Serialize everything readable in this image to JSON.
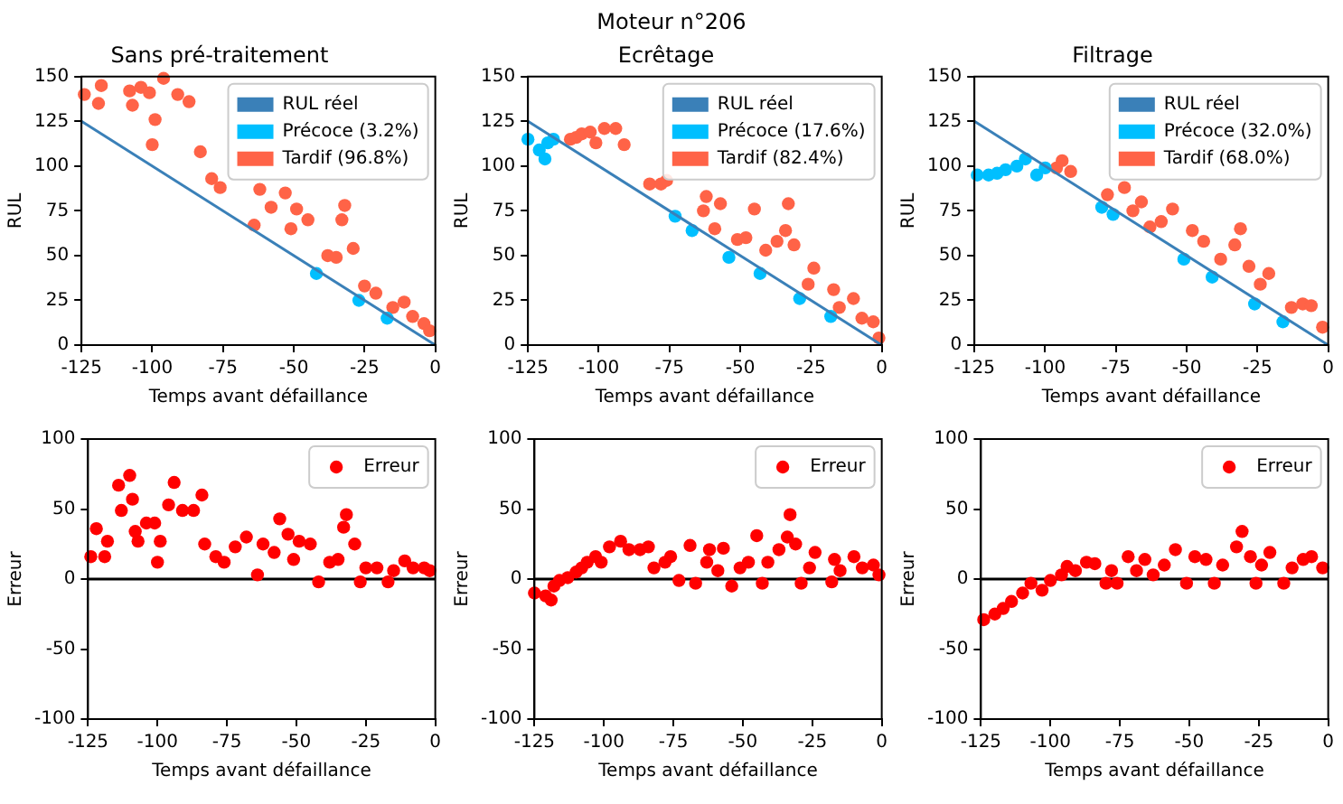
{
  "chart_data": [
    {
      "type": "scatter",
      "annotations": [
        "Moteur n°206"
      ],
      "title": "Sans pré-traitement",
      "xlabel": "Temps avant défaillance",
      "ylabel": "RUL",
      "xlim": [
        -125,
        0
      ],
      "xticks": [
        -125,
        -100,
        -75,
        -50,
        -25,
        0
      ],
      "ylim": [
        0,
        150
      ],
      "yticks": [
        0,
        25,
        50,
        75,
        100,
        125,
        150
      ],
      "legend": "top right",
      "marker": "circle",
      "series": [
        {
          "name": "RUL réel",
          "type": "line",
          "marker": "none",
          "color": "#3a80b8",
          "x": [
            -125,
            0
          ],
          "values": [
            125,
            0
          ]
        },
        {
          "name": "Précoce (3.2%)",
          "color": "#00bfff",
          "x": [
            -42,
            -27,
            -17
          ],
          "values": [
            40,
            25,
            15
          ]
        },
        {
          "name": "Tardif (96.8%)",
          "color": "#ff6347",
          "x": [
            -124,
            -119,
            -118,
            -108,
            -107,
            -104,
            -101,
            -100,
            -99,
            -96,
            -91,
            -87,
            -83,
            -79,
            -76,
            -64,
            -62,
            -58,
            -53,
            -51,
            -49,
            -45,
            -38,
            -35,
            -33,
            -32,
            -29,
            -25,
            -21,
            -15,
            -11,
            -8,
            -4,
            -2
          ],
          "values": [
            140,
            135,
            145,
            142,
            134,
            144,
            141,
            112,
            126,
            149,
            140,
            136,
            108,
            93,
            88,
            67,
            87,
            77,
            85,
            65,
            76,
            70,
            50,
            49,
            70,
            78,
            54,
            33,
            29,
            21,
            24,
            16,
            12,
            8
          ]
        }
      ]
    },
    {
      "type": "scatter",
      "title": "Ecrêtage",
      "xlabel": "Temps avant défaillance",
      "ylabel": "RUL",
      "xlim": [
        -125,
        0
      ],
      "xticks": [
        -125,
        -100,
        -75,
        -50,
        -25,
        0
      ],
      "ylim": [
        0,
        150
      ],
      "yticks": [
        0,
        25,
        50,
        75,
        100,
        125,
        150
      ],
      "legend": "top right",
      "marker": "circle",
      "series": [
        {
          "name": "RUL réel",
          "type": "line",
          "marker": "none",
          "color": "#3a80b8",
          "x": [
            -125,
            0
          ],
          "values": [
            125,
            0
          ]
        },
        {
          "name": "Précoce (17.6%)",
          "color": "#00bfff",
          "x": [
            -125,
            -121,
            -119,
            -118,
            -116,
            -73,
            -67,
            -54,
            -43,
            -29,
            -18
          ],
          "values": [
            115,
            109,
            104,
            113,
            115,
            72,
            64,
            49,
            40,
            26,
            16
          ]
        },
        {
          "name": "Tardif (82.4%)",
          "color": "#ff6347",
          "x": [
            -110,
            -108,
            -106,
            -103,
            -101,
            -98,
            -94,
            -91,
            -82,
            -78,
            -76,
            -63,
            -62,
            -59,
            -57,
            -51,
            -48,
            -45,
            -41,
            -37,
            -34,
            -33,
            -31,
            -26,
            -24,
            -17,
            -15,
            -10,
            -7,
            -3,
            -1
          ],
          "values": [
            115,
            116,
            118,
            119,
            113,
            121,
            121,
            112,
            90,
            90,
            92,
            75,
            83,
            65,
            79,
            59,
            60,
            76,
            53,
            58,
            64,
            79,
            56,
            34,
            43,
            31,
            21,
            26,
            15,
            13,
            4
          ]
        }
      ]
    },
    {
      "type": "scatter",
      "title": "Filtrage",
      "xlabel": "Temps avant défaillance",
      "ylabel": "RUL",
      "xlim": [
        -125,
        0
      ],
      "xticks": [
        -125,
        -100,
        -75,
        -50,
        -25,
        0
      ],
      "ylim": [
        0,
        150
      ],
      "yticks": [
        0,
        25,
        50,
        75,
        100,
        125,
        150
      ],
      "legend": "top right",
      "marker": "circle",
      "series": [
        {
          "name": "RUL réel",
          "type": "line",
          "marker": "none",
          "color": "#3a80b8",
          "x": [
            -125,
            0
          ],
          "values": [
            125,
            0
          ]
        },
        {
          "name": "Précoce (32.0%)",
          "color": "#00bfff",
          "x": [
            -124,
            -120,
            -117,
            -114,
            -110,
            -107,
            -103,
            -100,
            -80,
            -76,
            -51,
            -41,
            -26,
            -16
          ],
          "values": [
            95,
            95,
            96,
            98,
            100,
            104,
            95,
            99,
            77,
            73,
            48,
            38,
            23,
            13
          ]
        },
        {
          "name": "Tardif (68.0%)",
          "color": "#ff6347",
          "x": [
            -96,
            -94,
            -91,
            -78,
            -72,
            -69,
            -66,
            -63,
            -59,
            -55,
            -48,
            -44,
            -38,
            -33,
            -31,
            -28,
            -24,
            -21,
            -13,
            -9,
            -6,
            -2
          ],
          "values": [
            99,
            103,
            97,
            84,
            88,
            75,
            80,
            66,
            69,
            76,
            64,
            58,
            48,
            56,
            65,
            44,
            34,
            40,
            21,
            23,
            22,
            10
          ]
        }
      ]
    },
    {
      "type": "scatter",
      "xlabel": "Temps avant défaillance",
      "ylabel": "Erreur",
      "xlim": [
        -125,
        0
      ],
      "xticks": [
        -125,
        -100,
        -75,
        -50,
        -25,
        0
      ],
      "ylim": [
        -100,
        100
      ],
      "yticks": [
        -100,
        -50,
        0,
        50,
        100
      ],
      "legend": "top right",
      "marker": "circle",
      "ref_lines": [
        {
          "axis": "y",
          "value": 0,
          "color": "#000000"
        }
      ],
      "series": [
        {
          "name": "Erreur",
          "color": "#ff0000",
          "x": [
            -124,
            -122,
            -119,
            -118,
            -114,
            -113,
            -110,
            -109,
            -108,
            -107,
            -104,
            -101,
            -100,
            -99,
            -96,
            -94,
            -91,
            -87,
            -84,
            -83,
            -79,
            -76,
            -72,
            -68,
            -64,
            -62,
            -58,
            -56,
            -53,
            -51,
            -49,
            -45,
            -42,
            -38,
            -35,
            -33,
            -32,
            -29,
            -27,
            -25,
            -21,
            -17,
            -15,
            -11,
            -8,
            -4,
            -2
          ],
          "values": [
            16,
            36,
            16,
            27,
            67,
            49,
            74,
            57,
            34,
            27,
            40,
            40,
            12,
            27,
            53,
            69,
            49,
            49,
            60,
            25,
            16,
            12,
            23,
            30,
            3,
            25,
            19,
            43,
            32,
            14,
            27,
            25,
            -2,
            12,
            14,
            37,
            46,
            25,
            -2,
            8,
            8,
            -2,
            6,
            13,
            8,
            8,
            6
          ]
        }
      ]
    },
    {
      "type": "scatter",
      "xlabel": "Temps avant défaillance",
      "ylabel": "Erreur",
      "xlim": [
        -125,
        0
      ],
      "xticks": [
        -125,
        -100,
        -75,
        -50,
        -25,
        0
      ],
      "ylim": [
        -100,
        100
      ],
      "yticks": [
        -100,
        -50,
        0,
        50,
        100
      ],
      "legend": "top right",
      "marker": "circle",
      "ref_lines": [
        {
          "axis": "y",
          "value": 0,
          "color": "#000000"
        }
      ],
      "series": [
        {
          "name": "Erreur",
          "color": "#ff0000",
          "x": [
            -125,
            -121,
            -119,
            -118,
            -116,
            -113,
            -110,
            -108,
            -106,
            -103,
            -101,
            -98,
            -94,
            -91,
            -87,
            -84,
            -82,
            -78,
            -76,
            -73,
            -69,
            -67,
            -63,
            -62,
            -59,
            -57,
            -54,
            -51,
            -48,
            -45,
            -43,
            -41,
            -37,
            -34,
            -33,
            -31,
            -29,
            -26,
            -24,
            -18,
            -17,
            -15,
            -10,
            -7,
            -3,
            -1
          ],
          "values": [
            -10,
            -12,
            -15,
            -5,
            -1,
            1,
            5,
            8,
            12,
            16,
            12,
            23,
            27,
            21,
            21,
            23,
            8,
            12,
            16,
            -1,
            24,
            -3,
            12,
            21,
            6,
            22,
            -5,
            8,
            12,
            31,
            -3,
            12,
            21,
            30,
            46,
            25,
            -3,
            8,
            19,
            -2,
            14,
            6,
            16,
            8,
            10,
            3
          ]
        }
      ]
    },
    {
      "type": "scatter",
      "xlabel": "Temps avant défaillance",
      "ylabel": "Erreur",
      "xlim": [
        -125,
        0
      ],
      "xticks": [
        -125,
        -100,
        -75,
        -50,
        -25,
        0
      ],
      "ylim": [
        -100,
        100
      ],
      "yticks": [
        -100,
        -50,
        0,
        50,
        100
      ],
      "legend": "top right",
      "marker": "circle",
      "ref_lines": [
        {
          "axis": "y",
          "value": 0,
          "color": "#000000"
        }
      ],
      "series": [
        {
          "name": "Erreur",
          "color": "#ff0000",
          "x": [
            -124,
            -120,
            -117,
            -114,
            -110,
            -107,
            -103,
            -100,
            -96,
            -94,
            -91,
            -87,
            -84,
            -80,
            -78,
            -76,
            -72,
            -69,
            -66,
            -63,
            -59,
            -55,
            -51,
            -48,
            -44,
            -41,
            -38,
            -33,
            -31,
            -28,
            -26,
            -24,
            -21,
            -16,
            -13,
            -9,
            -6,
            -2
          ],
          "values": [
            -29,
            -25,
            -21,
            -16,
            -10,
            -3,
            -8,
            -1,
            3,
            9,
            6,
            12,
            11,
            -3,
            6,
            -3,
            16,
            6,
            14,
            3,
            10,
            21,
            -3,
            16,
            14,
            -3,
            10,
            23,
            34,
            16,
            -3,
            10,
            19,
            -3,
            8,
            14,
            16,
            8
          ]
        }
      ]
    }
  ]
}
